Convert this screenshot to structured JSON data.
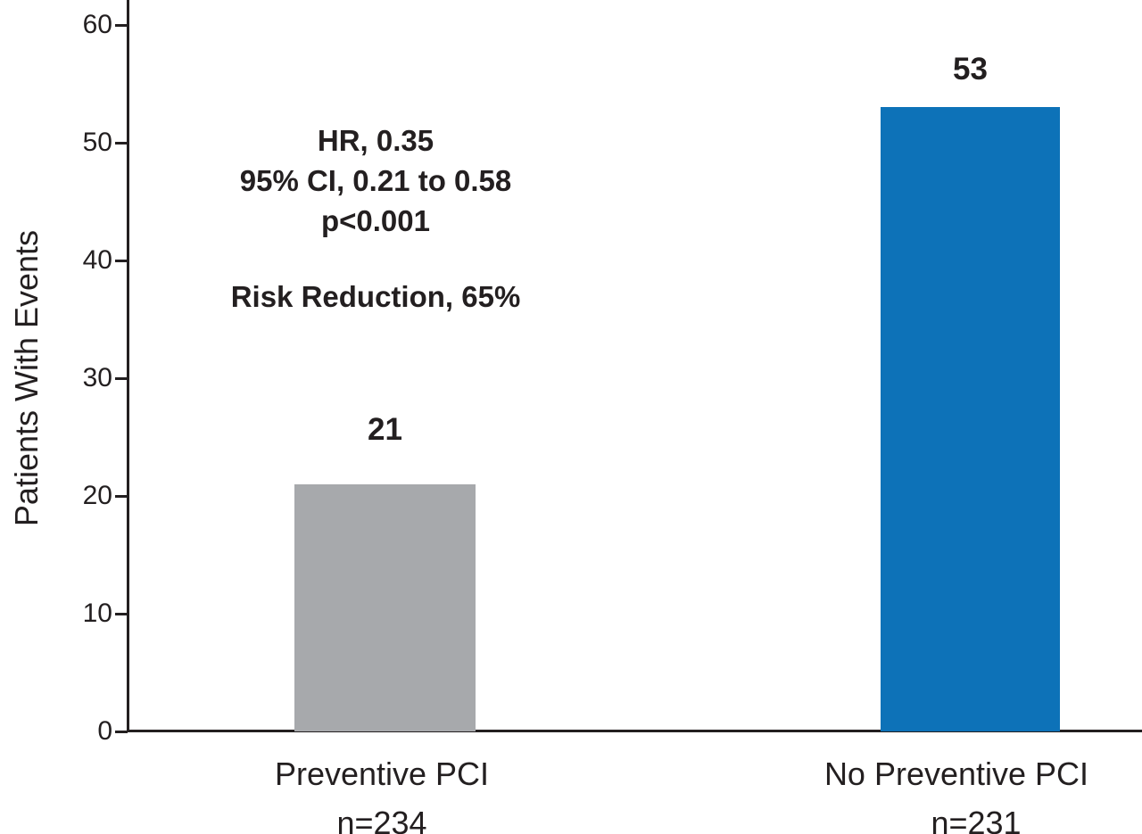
{
  "chart_data": {
    "type": "bar",
    "title": "",
    "xlabel": "",
    "ylabel": "Patients With Events",
    "categories": [
      "Preventive PCI",
      "No Preventive PCI"
    ],
    "n_labels": [
      "n=234",
      "n=231"
    ],
    "values": [
      21,
      53
    ],
    "value_labels": [
      "21",
      "53"
    ],
    "yticks": [
      0,
      10,
      20,
      30,
      40,
      50,
      60
    ],
    "ylim": [
      0,
      62
    ],
    "grid": false,
    "legend": "none",
    "bar_colors": [
      "#a7a9ac",
      "#0d72b8"
    ],
    "axis_color": "#231f20",
    "annotations": {
      "hr": "HR, 0.35",
      "ci": "95% CI, 0.21 to 0.58",
      "p": "p<0.001",
      "risk_reduction": "Risk Reduction, 65%"
    }
  }
}
